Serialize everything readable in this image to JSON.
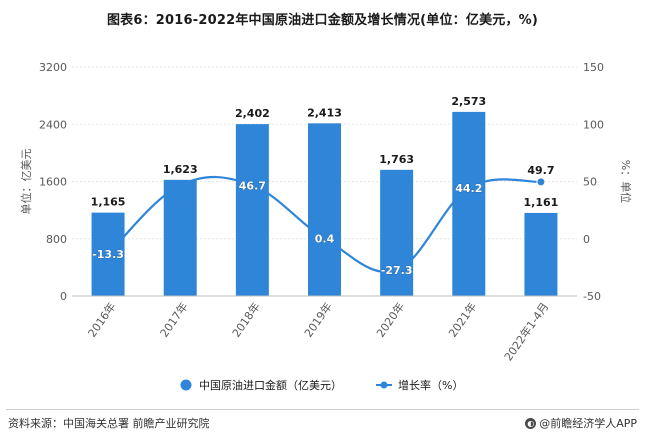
{
  "chart_data": {
    "type": "bar+line",
    "title": "图表6：2016-2022年中国原油进口金额及增长情况(单位：亿美元，%)",
    "categories": [
      "2016年",
      "2017年",
      "2018年",
      "2019年",
      "2020年",
      "2021年",
      "2022年1-4月"
    ],
    "series": [
      {
        "name": "中国原油进口金额（亿美元）",
        "type": "bar",
        "axis": "left",
        "values": [
          1165,
          1623,
          2402,
          2413,
          1763,
          2573,
          1161
        ],
        "value_labels": [
          "1,165",
          "1,623",
          "2,402",
          "2,413",
          "1,763",
          "2,573",
          "1,161"
        ]
      },
      {
        "name": "增长率（%）",
        "type": "line",
        "axis": "right",
        "values": [
          -13.3,
          46.7,
          46.7,
          0.4,
          -27.3,
          44.2,
          49.7
        ],
        "value_labels": [
          "-13.3",
          "",
          "46.7",
          "0.4",
          "-27.3",
          "44.2",
          "49.7"
        ],
        "markers": [
          false,
          false,
          false,
          false,
          false,
          false,
          true
        ]
      }
    ],
    "y_left": {
      "label": "单位：亿美元",
      "ylim": [
        0,
        3200
      ],
      "ticks": [
        0,
        800,
        1600,
        2400,
        3200
      ]
    },
    "y_right": {
      "label": "%：单位",
      "ylim": [
        -50,
        150
      ],
      "ticks": [
        -50,
        0,
        50,
        100,
        150
      ]
    },
    "legend_position": "bottom",
    "colors": {
      "bar": "#2f86d9",
      "line": "#2f86d9",
      "axis_text": "#595959",
      "grid": "#e6e6e6"
    }
  },
  "footer": {
    "source": "资料来源：中国海关总署 前瞻产业研究院",
    "brand": "@前瞻经济学人APP"
  }
}
